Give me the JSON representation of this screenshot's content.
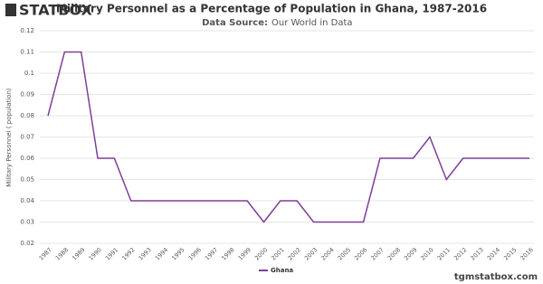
{
  "logo": "STATBOX",
  "footer": "tgmstatbox.com",
  "chart_data": {
    "type": "line",
    "title": "Military Personnel as a Percentage of Population in Ghana, 1987-2016",
    "subtitle_label": "Data Source:",
    "subtitle": "Our World in Data",
    "y_label": "Military Personnel ( population)",
    "categories": [
      "1987",
      "1988",
      "1989",
      "1990",
      "1991",
      "1992",
      "1993",
      "1994",
      "1995",
      "1996",
      "1997",
      "1998",
      "1999",
      "2000",
      "2001",
      "2002",
      "2003",
      "2004",
      "2005",
      "2006",
      "2007",
      "2008",
      "2009",
      "2010",
      "2011",
      "2012",
      "2013",
      "2014",
      "2015",
      "2016"
    ],
    "series": [
      {
        "name": "Ghana",
        "color": "#7e3f98",
        "values": [
          0.08,
          0.11,
          0.11,
          0.06,
          0.06,
          0.04,
          0.04,
          0.04,
          0.04,
          0.04,
          0.04,
          0.04,
          0.04,
          0.03,
          0.04,
          0.04,
          0.03,
          0.03,
          0.03,
          0.03,
          0.06,
          0.06,
          0.06,
          0.07,
          0.05,
          0.06,
          0.06,
          0.06,
          0.06,
          0.06
        ]
      }
    ],
    "ylim": [
      0.02,
      0.12
    ],
    "yticks": [
      0.02,
      0.03,
      0.04,
      0.05,
      0.06,
      0.07,
      0.08,
      0.09,
      0.1,
      0.11,
      0.12
    ],
    "grid": true,
    "legend": "bottom"
  }
}
